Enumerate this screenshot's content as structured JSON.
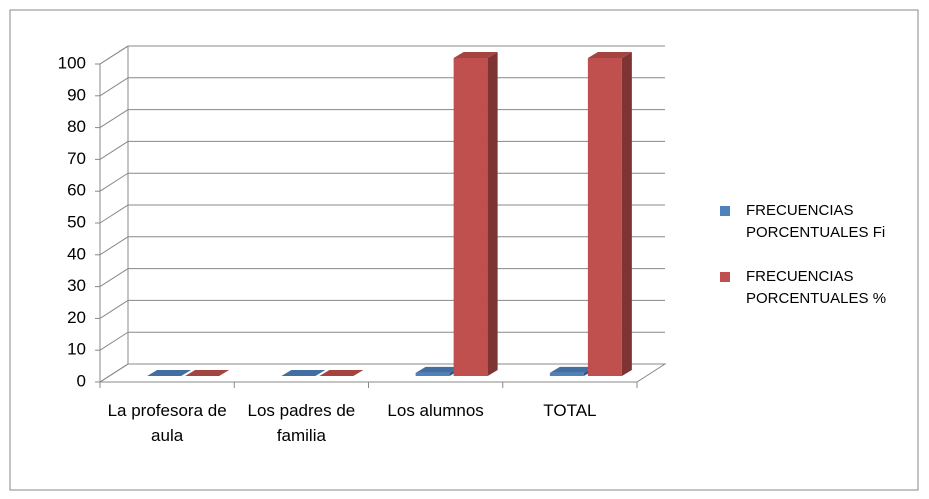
{
  "chart_data": {
    "type": "bar3d",
    "categories": [
      "La profesora de aula",
      "Los padres de familia",
      "Los alumnos",
      "TOTAL"
    ],
    "series": [
      {
        "name": "FRECUENCIAS PORCENTUALES Fi",
        "color": "#4f81bd",
        "values": [
          0,
          0,
          1,
          1
        ]
      },
      {
        "name": "FRECUENCIAS PORCENTUALES %",
        "color": "#c0504d",
        "values": [
          0,
          0,
          100,
          100
        ]
      }
    ],
    "ylim": [
      0,
      100
    ],
    "yticks": [
      0,
      10,
      20,
      30,
      40,
      50,
      60,
      70,
      80,
      90,
      100
    ],
    "grid": true,
    "legend": "right"
  }
}
